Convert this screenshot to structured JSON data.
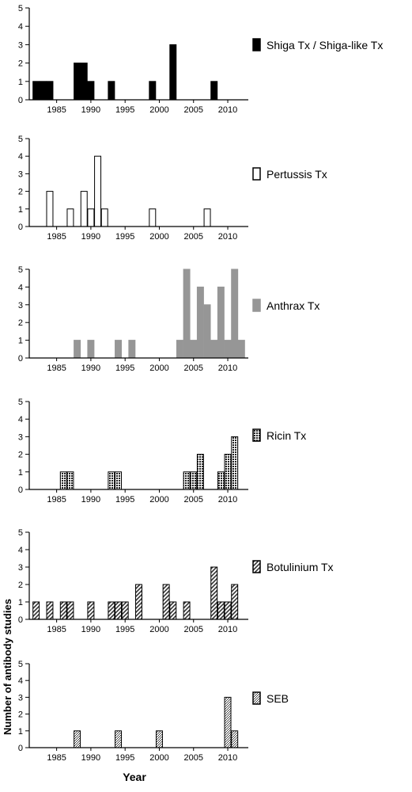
{
  "figure": {
    "ylabel": "Number of antibody studies",
    "xlabel": "Year"
  },
  "patterns": {
    "pat-white": {
      "fill": "#ffffff"
    },
    "pat-gray": {
      "fill": "#969696"
    },
    "pat-ricin": {
      "fill": "#ffffff",
      "mark": "#222222"
    },
    "pat-diag": {
      "fill": "#ffffff",
      "mark": "#333333"
    },
    "pat-seb": {
      "fill": "#ffffff",
      "mark": "#333333"
    }
  },
  "chart_data": [
    {
      "type": "bar",
      "legend": "Shiga Tx / Shiga-like Tx",
      "bar_color": "#000000",
      "xlim": [
        1981,
        2013
      ],
      "ylim": [
        0,
        5
      ],
      "yticks": [
        0,
        1,
        2,
        3,
        4,
        5
      ],
      "xticks": [
        1985,
        1990,
        1995,
        2000,
        2005,
        2010
      ],
      "x": [
        1982,
        1983,
        1984,
        1988,
        1989,
        1990,
        1993,
        1999,
        2002,
        2008
      ],
      "values": [
        1,
        1,
        1,
        2,
        2,
        1,
        1,
        1,
        3,
        1
      ]
    },
    {
      "type": "bar",
      "legend": "Pertussis Tx",
      "bar_color": "#ffffff",
      "xlim": [
        1981,
        2013
      ],
      "ylim": [
        0,
        5
      ],
      "yticks": [
        0,
        1,
        2,
        3,
        4,
        5
      ],
      "xticks": [
        1985,
        1990,
        1995,
        2000,
        2005,
        2010
      ],
      "x": [
        1984,
        1987,
        1989,
        1990,
        1991,
        1992,
        1999,
        2007
      ],
      "values": [
        2,
        1,
        2,
        1,
        4,
        1,
        1,
        1
      ]
    },
    {
      "type": "bar",
      "legend": "Anthrax Tx",
      "bar_color": "#969696",
      "xlim": [
        1981,
        2013
      ],
      "ylim": [
        0,
        5
      ],
      "yticks": [
        0,
        1,
        2,
        3,
        4,
        5
      ],
      "xticks": [
        1985,
        1990,
        1995,
        2000,
        2005,
        2010
      ],
      "x": [
        1988,
        1990,
        1994,
        1996,
        2003,
        2004,
        2005,
        2006,
        2007,
        2008,
        2009,
        2010,
        2011,
        2012
      ],
      "values": [
        1,
        1,
        1,
        1,
        1,
        5,
        1,
        4,
        3,
        1,
        4,
        1,
        5,
        1
      ]
    },
    {
      "type": "bar",
      "legend": "Ricin Tx",
      "bar_color": "#ffffff",
      "xlim": [
        1981,
        2013
      ],
      "ylim": [
        0,
        5
      ],
      "yticks": [
        0,
        1,
        2,
        3,
        4,
        5
      ],
      "xticks": [
        1985,
        1990,
        1995,
        2000,
        2005,
        2010
      ],
      "x": [
        1986,
        1987,
        1993,
        1994,
        2004,
        2005,
        2006,
        2009,
        2010,
        2011
      ],
      "values": [
        1,
        1,
        1,
        1,
        1,
        1,
        2,
        1,
        2,
        3
      ]
    },
    {
      "type": "bar",
      "legend": "Botulinium Tx",
      "bar_color": "#ffffff",
      "xlim": [
        1981,
        2013
      ],
      "ylim": [
        0,
        5
      ],
      "yticks": [
        0,
        1,
        2,
        3,
        4,
        5
      ],
      "xticks": [
        1985,
        1990,
        1995,
        2000,
        2005,
        2010
      ],
      "x": [
        1982,
        1984,
        1986,
        1987,
        1990,
        1993,
        1994,
        1995,
        1997,
        2001,
        2002,
        2004,
        2008,
        2009,
        2010,
        2011
      ],
      "values": [
        1,
        1,
        1,
        1,
        1,
        1,
        1,
        1,
        2,
        2,
        1,
        1,
        3,
        1,
        1,
        2
      ]
    },
    {
      "type": "bar",
      "legend": "SEB",
      "bar_color": "#ffffff",
      "xlim": [
        1981,
        2013
      ],
      "ylim": [
        0,
        5
      ],
      "yticks": [
        0,
        1,
        2,
        3,
        4,
        5
      ],
      "xticks": [
        1985,
        1990,
        1995,
        2000,
        2005,
        2010
      ],
      "x": [
        1988,
        1994,
        2000,
        2010,
        2011
      ],
      "values": [
        1,
        1,
        1,
        3,
        1
      ]
    }
  ]
}
